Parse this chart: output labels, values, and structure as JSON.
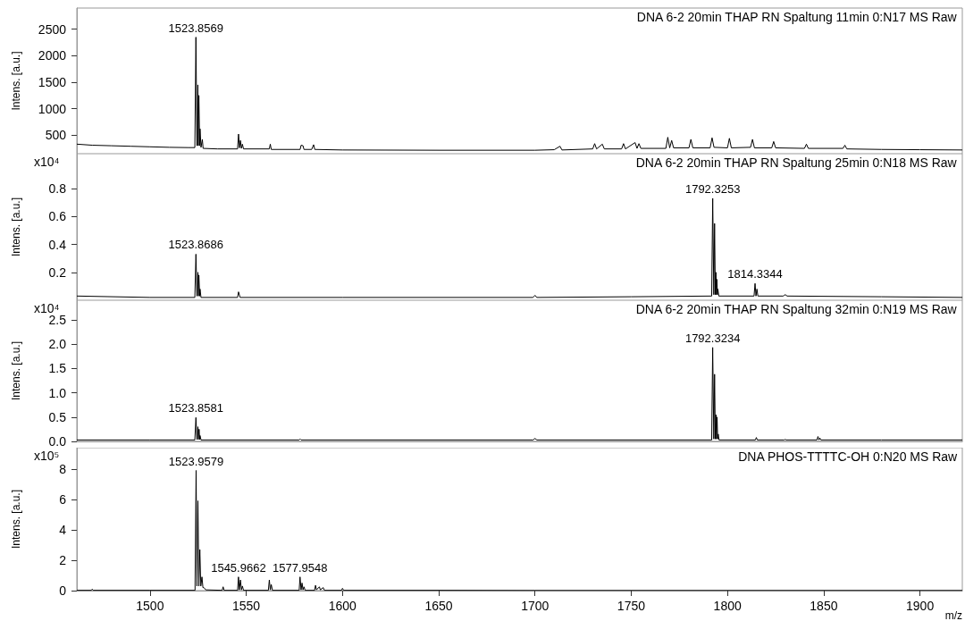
{
  "chart_data": [
    {
      "type": "line",
      "title": "DNA 6-2 20min THAP RN Spaltung 11min 0:N17 MS Raw",
      "ylabel": "Intens. [a.u.]",
      "xlim": [
        1462,
        1922
      ],
      "xticks": [
        1500,
        1550,
        1600,
        1650,
        1700,
        1750,
        1800,
        1850,
        1900
      ],
      "ylim": [
        150,
        2900
      ],
      "yticks": [
        500,
        1000,
        1500,
        2000,
        2500
      ],
      "tick_labels": "y",
      "annotations": [
        {
          "text": "1523.8569",
          "x": 1523.8569,
          "y": 2350
        }
      ],
      "series": [
        {
          "color": "#000000",
          "x": [
            1462,
            1470,
            1480,
            1490,
            1500,
            1510,
            1520,
            1523.3,
            1523.86,
            1524.4,
            1524.86,
            1525.1,
            1525.4,
            1525.8,
            1526,
            1526.5,
            1527.2,
            1527.6,
            1535,
            1545.5,
            1546,
            1546.5,
            1547,
            1547.5,
            1548,
            1548.6,
            1562,
            1562.5,
            1563,
            1578,
            1578.5,
            1579.5,
            1580,
            1584,
            1585,
            1585.6,
            1600,
            1650,
            1700,
            1710,
            1713,
            1714,
            1730,
            1731,
            1732,
            1735,
            1736,
            1745,
            1746,
            1747,
            1752,
            1753,
            1754,
            1755,
            1768,
            1769,
            1770,
            1771,
            1772,
            1780,
            1781,
            1782,
            1791,
            1792,
            1793,
            1800,
            1801,
            1802,
            1812,
            1813,
            1814,
            1823,
            1824,
            1825,
            1840,
            1841,
            1842,
            1860,
            1861,
            1862,
            1880,
            1900,
            1922
          ],
          "values": [
            330,
            310,
            300,
            290,
            280,
            270,
            265,
            265,
            2350,
            300,
            1450,
            300,
            1250,
            300,
            620,
            270,
            420,
            250,
            240,
            240,
            520,
            260,
            400,
            250,
            330,
            240,
            240,
            330,
            230,
            230,
            310,
            300,
            230,
            230,
            320,
            230,
            220,
            215,
            215,
            225,
            290,
            220,
            240,
            340,
            240,
            330,
            240,
            240,
            340,
            240,
            360,
            250,
            340,
            250,
            250,
            460,
            260,
            400,
            260,
            260,
            420,
            260,
            260,
            450,
            270,
            260,
            440,
            260,
            270,
            420,
            260,
            260,
            380,
            260,
            250,
            330,
            250,
            250,
            310,
            240,
            230,
            225,
            220
          ]
        }
      ]
    },
    {
      "type": "line",
      "title": "DNA 6-2 20min THAP RN Spaltung 25min 0:N18 MS Raw",
      "ylabel": "Intens. [a.u.]",
      "xlim": [
        1462,
        1922
      ],
      "xticks": [
        1500,
        1550,
        1600,
        1650,
        1700,
        1750,
        1800,
        1850,
        1900
      ],
      "ylim": [
        0,
        1.05
      ],
      "yticks": [
        0.2,
        0.4,
        0.6,
        0.8
      ],
      "tick_labels": "y",
      "annotations": [
        "x10⁴",
        {
          "text": "1523.8686",
          "x": 1523.8686,
          "y": 0.33
        },
        {
          "text": "1792.3253",
          "x": 1792.3253,
          "y": 0.73
        },
        {
          "text": "1814.3344",
          "x": 1814.3344,
          "y": 0.12
        }
      ],
      "series": [
        {
          "color": "#000000",
          "x": [
            1462,
            1500,
            1523.3,
            1523.87,
            1524.4,
            1524.9,
            1525.2,
            1525.4,
            1525.8,
            1526,
            1526.5,
            1545.5,
            1546,
            1546.8,
            1600,
            1699,
            1700,
            1701,
            1750,
            1791.8,
            1792.33,
            1792.9,
            1793.3,
            1793.7,
            1794,
            1794.3,
            1794.5,
            1794.8,
            1795,
            1795.5,
            1813.8,
            1814.33,
            1814.8,
            1815.3,
            1815.8,
            1829,
            1830,
            1831,
            1880,
            1922
          ],
          "values": [
            0.03,
            0.02,
            0.02,
            0.33,
            0.03,
            0.2,
            0.03,
            0.18,
            0.03,
            0.08,
            0.02,
            0.02,
            0.06,
            0.02,
            0.02,
            0.02,
            0.035,
            0.02,
            0.025,
            0.03,
            0.73,
            0.04,
            0.55,
            0.04,
            0.2,
            0.04,
            0.15,
            0.04,
            0.08,
            0.03,
            0.03,
            0.12,
            0.03,
            0.08,
            0.03,
            0.03,
            0.04,
            0.03,
            0.025,
            0.02
          ]
        }
      ]
    },
    {
      "type": "line",
      "title": "DNA 6-2 20min THAP RN Spaltung 32min 0:N19 MS Raw",
      "ylabel": "Intens. [a.u.]",
      "xlim": [
        1462,
        1922
      ],
      "xticks": [
        1500,
        1550,
        1600,
        1650,
        1700,
        1750,
        1800,
        1850,
        1900
      ],
      "ylim": [
        0,
        2.9
      ],
      "yticks": [
        {
          "value": 0,
          "label": "0.0"
        },
        0.5,
        {
          "value": 1,
          "label": "1.0"
        },
        1.5,
        {
          "value": 2,
          "label": "2.0"
        },
        2.5
      ],
      "tick_labels": "y",
      "annotations": [
        "x10⁴",
        {
          "text": "1523.8581",
          "x": 1523.8581,
          "y": 0.49
        },
        {
          "text": "1792.3234",
          "x": 1792.3234,
          "y": 1.93
        }
      ],
      "series": [
        {
          "color": "#000000",
          "x": [
            1462,
            1500,
            1523.3,
            1523.86,
            1524.4,
            1524.9,
            1525.2,
            1525.5,
            1525.8,
            1526,
            1526.5,
            1577.5,
            1578,
            1578.5,
            1699,
            1700,
            1701,
            1791.8,
            1792.32,
            1792.9,
            1793.3,
            1793.7,
            1794,
            1794.3,
            1794.6,
            1794.9,
            1795.2,
            1795.6,
            1814.5,
            1815,
            1815.5,
            1829.5,
            1830,
            1830.5,
            1846.5,
            1847,
            1847.5,
            1848,
            1848.5,
            1880,
            1922
          ],
          "values": [
            0.03,
            0.03,
            0.03,
            0.49,
            0.04,
            0.3,
            0.04,
            0.25,
            0.04,
            0.12,
            0.03,
            0.03,
            0.05,
            0.03,
            0.03,
            0.06,
            0.03,
            0.03,
            1.93,
            0.05,
            1.38,
            0.05,
            0.55,
            0.05,
            0.5,
            0.05,
            0.15,
            0.03,
            0.03,
            0.08,
            0.03,
            0.03,
            0.04,
            0.03,
            0.03,
            0.1,
            0.03,
            0.07,
            0.03,
            0.03,
            0.03
          ]
        }
      ]
    },
    {
      "type": "line",
      "title": "DNA PHOS-TTTTC-OH 0:N20 MS Raw",
      "xlabel": "m/z",
      "ylabel": "Intens. [a.u.]",
      "xlim": [
        1462,
        1922
      ],
      "xticks": [
        1500,
        1550,
        1600,
        1650,
        1700,
        1750,
        1800,
        1850,
        1900
      ],
      "ylim": [
        0,
        9.4
      ],
      "yticks": [
        0,
        2,
        4,
        6,
        8
      ],
      "annotations": [
        "x10⁵",
        {
          "text": "1523.9579",
          "x": 1523.9579,
          "y": 7.9
        },
        {
          "text": "1545.9662",
          "x": 1545.9662,
          "y": 0.9
        },
        {
          "text": "1577.9548",
          "x": 1577.9548,
          "y": 0.9
        }
      ],
      "series": [
        {
          "color": "#000000",
          "x": [
            1462,
            1469.5,
            1470,
            1470.5,
            1500,
            1523.4,
            1523.96,
            1524.4,
            1524.9,
            1525.4,
            1525.9,
            1526.4,
            1527,
            1527.5,
            1528,
            1529,
            1537.5,
            1538,
            1538.5,
            1545.5,
            1545.97,
            1546.4,
            1547,
            1547.5,
            1548,
            1548.6,
            1561.5,
            1562,
            1562.5,
            1563,
            1563.6,
            1577.5,
            1577.95,
            1578.5,
            1579,
            1579.5,
            1580,
            1580.6,
            1585.5,
            1586,
            1586.5,
            1588,
            1588.5,
            1590,
            1590.6,
            1599.5,
            1600,
            1600.6,
            1650,
            1700,
            1922
          ],
          "values": [
            0.02,
            0.02,
            0.1,
            0.02,
            0.02,
            0.02,
            7.9,
            0.3,
            5.9,
            0.3,
            2.7,
            0.3,
            0.9,
            0.2,
            0.2,
            0.05,
            0.02,
            0.25,
            0.02,
            0.02,
            0.9,
            0.05,
            0.7,
            0.05,
            0.3,
            0.02,
            0.02,
            0.7,
            0.05,
            0.4,
            0.02,
            0.02,
            0.9,
            0.05,
            0.5,
            0.05,
            0.25,
            0.02,
            0.02,
            0.35,
            0.05,
            0.25,
            0.05,
            0.2,
            0.02,
            0.02,
            0.15,
            0.02,
            0.02,
            0.01,
            0.01
          ]
        }
      ]
    }
  ]
}
